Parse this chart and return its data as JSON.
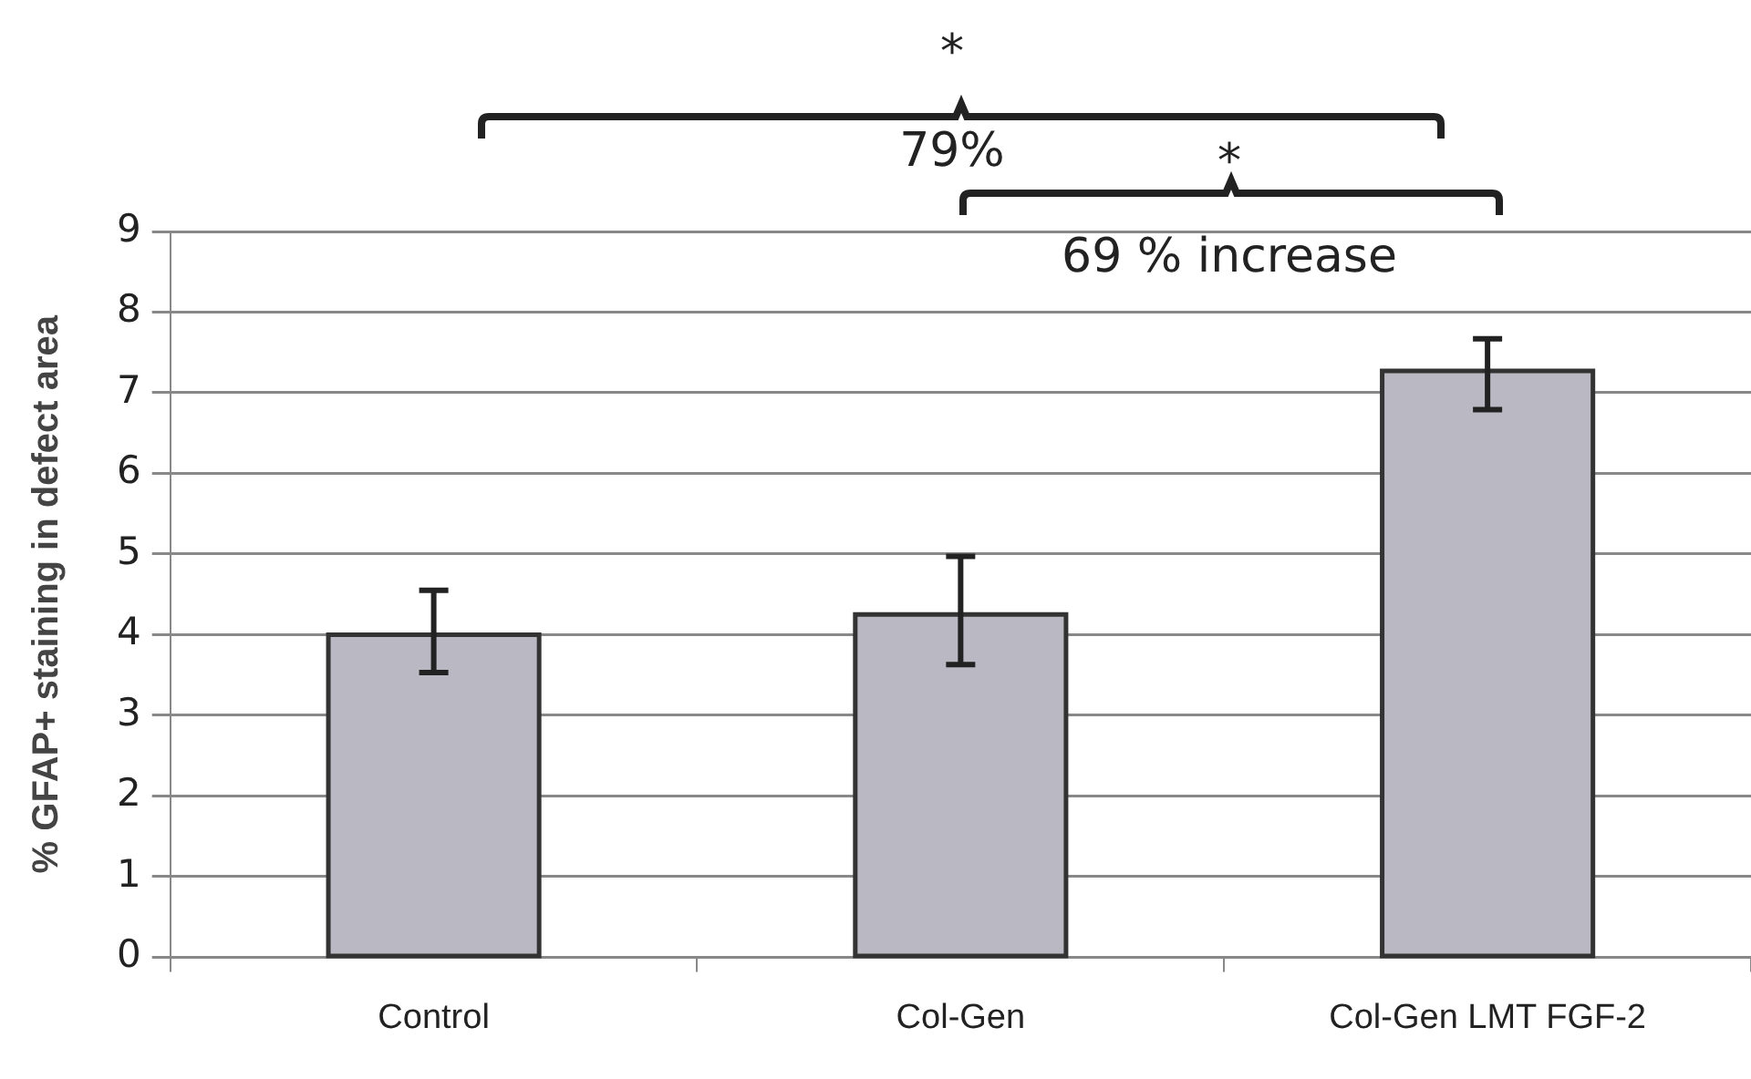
{
  "chart_data": {
    "type": "bar",
    "ylabel": "% GFAP+ staining in defect area",
    "categories": [
      "Control",
      "Col-Gen",
      "Col-Gen LMT FGF-2"
    ],
    "values": [
      4.0,
      4.25,
      7.27
    ],
    "errors": [
      [
        3.53,
        4.55
      ],
      [
        3.63,
        4.97
      ],
      [
        6.79,
        7.67
      ]
    ],
    "color": "#b9b8c3",
    "ylim": [
      0,
      9
    ],
    "yticks": [
      0,
      1,
      2,
      3,
      4,
      5,
      6,
      7,
      8,
      9
    ],
    "grid": "y",
    "legend": false,
    "annotations": [
      "*",
      "79%",
      "*",
      "69 % increase"
    ]
  }
}
